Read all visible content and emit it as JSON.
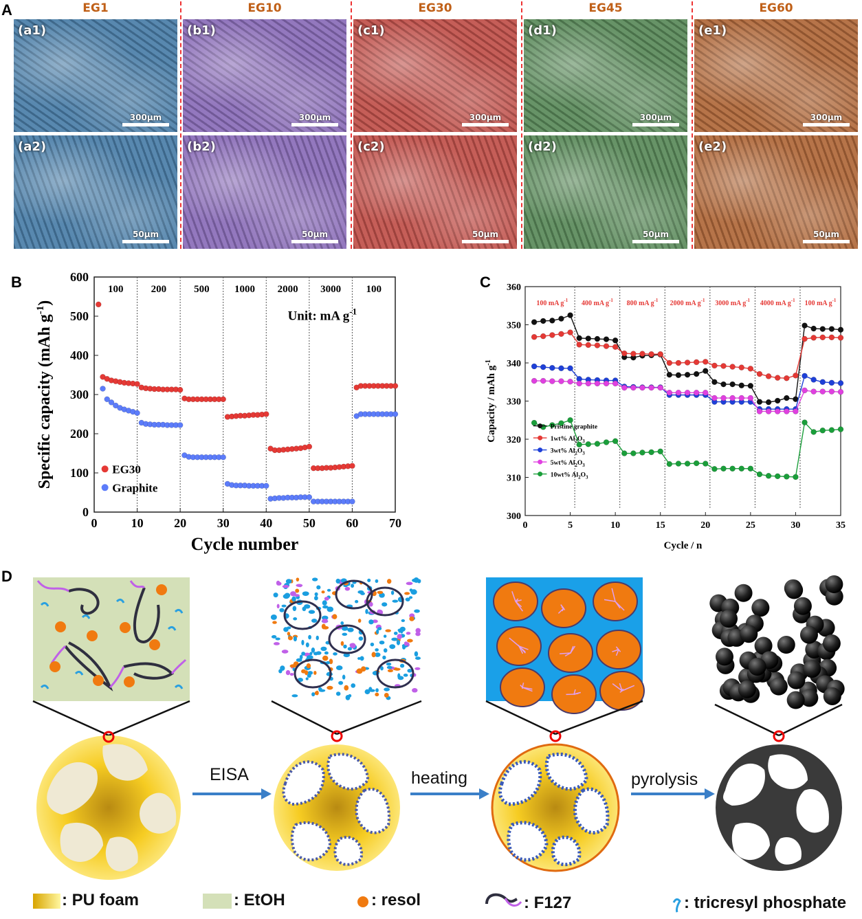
{
  "panel_A": {
    "letter": "A",
    "columns": [
      {
        "name": "EG1",
        "color": "#4a7ea8",
        "top_label": "(a1)",
        "bottom_label": "(a2)",
        "top_scale": "300μm",
        "bottom_scale": "50μm"
      },
      {
        "name": "EG10",
        "color": "#8a6cb8",
        "top_label": "(b1)",
        "bottom_label": "(b2)",
        "top_scale": "300μm",
        "bottom_scale": "50μm"
      },
      {
        "name": "EG30",
        "color": "#c0504a",
        "top_label": "(c1)",
        "bottom_label": "(c2)",
        "top_scale": "300μm",
        "bottom_scale": "50μm"
      },
      {
        "name": "EG45",
        "color": "#5a8a5a",
        "top_label": "(d1)",
        "bottom_label": "(d2)",
        "top_scale": "300μm",
        "bottom_scale": "50μm"
      },
      {
        "name": "EG60",
        "color": "#b0683a",
        "top_label": "(e1)",
        "bottom_label": "(e2)",
        "top_scale": "300μm",
        "bottom_scale": "50μm"
      }
    ]
  },
  "panel_B": {
    "letter": "B",
    "unit_note": "Unit: mA g",
    "unit_sup": "-1"
  },
  "panel_C": {
    "letter": "C"
  },
  "panel_D": {
    "letter": "D",
    "arrows": [
      "EISA",
      "heating",
      "pyrolysis"
    ],
    "legend": {
      "pu_foam": ":  PU foam",
      "etoh": ":  EtOH",
      "resol": ": resol",
      "f127": ": F127",
      "tcp": ": tricresyl phosphate"
    }
  },
  "chart_data": [
    {
      "type": "scatter",
      "xlabel": "Cycle number",
      "ylabel": "Specific capacity (mAh g",
      "ylabel_sup": "-1",
      "xlim": [
        0,
        70
      ],
      "ylim": [
        0,
        600
      ],
      "xticks": [
        0,
        10,
        20,
        30,
        40,
        50,
        60,
        70
      ],
      "yticks": [
        0,
        100,
        200,
        300,
        400,
        500,
        600
      ],
      "rate_labels": [
        "100",
        "200",
        "500",
        "1000",
        "2000",
        "3000",
        "100"
      ],
      "segment_boundaries": [
        10,
        20,
        30,
        40,
        50,
        60
      ],
      "legend_position": "bottom-left",
      "series": [
        {
          "name": "EG30",
          "color": "#e53935",
          "x": [
            1,
            2,
            3,
            4,
            5,
            6,
            7,
            8,
            9,
            10,
            11,
            12,
            13,
            14,
            15,
            16,
            17,
            18,
            19,
            20,
            21,
            22,
            23,
            24,
            25,
            26,
            27,
            28,
            29,
            30,
            31,
            32,
            33,
            34,
            35,
            36,
            37,
            38,
            39,
            40,
            41,
            42,
            43,
            44,
            45,
            46,
            47,
            48,
            49,
            50,
            51,
            52,
            53,
            54,
            55,
            56,
            57,
            58,
            59,
            60,
            61,
            62,
            63,
            64,
            65,
            66,
            67,
            68,
            69,
            70
          ],
          "y": [
            530,
            345,
            340,
            336,
            334,
            332,
            330,
            329,
            328,
            327,
            318,
            316,
            315,
            314,
            314,
            313,
            313,
            313,
            313,
            312,
            290,
            288,
            288,
            288,
            288,
            288,
            288,
            288,
            288,
            288,
            243,
            244,
            245,
            246,
            246,
            247,
            248,
            248,
            249,
            250,
            162,
            158,
            158,
            159,
            160,
            161,
            162,
            163,
            165,
            167,
            112,
            112,
            112,
            113,
            113,
            114,
            115,
            116,
            117,
            118,
            318,
            322,
            322,
            322,
            322,
            322,
            322,
            322,
            322,
            322
          ]
        },
        {
          "name": "Graphite",
          "color": "#5c7cfa",
          "x": [
            2,
            3,
            4,
            5,
            6,
            7,
            8,
            9,
            10,
            11,
            12,
            13,
            14,
            15,
            16,
            17,
            18,
            19,
            20,
            21,
            22,
            23,
            24,
            25,
            26,
            27,
            28,
            29,
            30,
            31,
            32,
            33,
            34,
            35,
            36,
            37,
            38,
            39,
            40,
            41,
            42,
            43,
            44,
            45,
            46,
            47,
            48,
            49,
            50,
            51,
            52,
            53,
            54,
            55,
            56,
            57,
            58,
            59,
            60,
            61,
            62,
            63,
            64,
            65,
            66,
            67,
            68,
            69,
            70
          ],
          "y": [
            315,
            288,
            280,
            272,
            266,
            262,
            259,
            256,
            253,
            228,
            225,
            224,
            223,
            223,
            223,
            222,
            222,
            222,
            222,
            145,
            141,
            140,
            140,
            140,
            140,
            140,
            140,
            140,
            140,
            72,
            69,
            68,
            68,
            68,
            67,
            67,
            67,
            67,
            67,
            34,
            35,
            36,
            36,
            37,
            37,
            37,
            38,
            38,
            38,
            27,
            27,
            27,
            27,
            27,
            27,
            27,
            27,
            27,
            27,
            245,
            250,
            250,
            250,
            250,
            250,
            250,
            250,
            250,
            250
          ]
        }
      ]
    },
    {
      "type": "line",
      "xlabel": "Cycle / n",
      "ylabel": "Capacity / mAh g",
      "ylabel_sup": "-1",
      "xlim": [
        0,
        35
      ],
      "ylim": [
        300,
        360
      ],
      "xticks": [
        0,
        5,
        10,
        15,
        20,
        25,
        30,
        35
      ],
      "yticks": [
        300,
        310,
        320,
        330,
        340,
        350,
        360
      ],
      "rate_labels": [
        "100 mA g",
        "400 mA g",
        "800 mA g",
        "2000 mA g",
        "3000 mA g",
        "4000 mA g",
        "100 mA g"
      ],
      "rate_label_sup": "-1",
      "segment_boundaries": [
        5.5,
        10.5,
        15.5,
        20.5,
        25.5,
        30.5
      ],
      "legend_position": "bottom-left",
      "series": [
        {
          "name": "Pristine graphite",
          "color": "#111111",
          "x": [
            1,
            2,
            3,
            4,
            5,
            6,
            7,
            8,
            9,
            10,
            11,
            12,
            13,
            14,
            15,
            16,
            17,
            18,
            19,
            20,
            21,
            22,
            23,
            24,
            25,
            26,
            27,
            28,
            29,
            30,
            31,
            32,
            33,
            34,
            35
          ],
          "y": [
            350.7,
            351.0,
            351.1,
            351.6,
            352.5,
            346.5,
            346.4,
            346.3,
            346.2,
            345.9,
            341.5,
            341.4,
            341.9,
            342.0,
            342.2,
            336.9,
            336.8,
            336.9,
            337.1,
            337.9,
            335.0,
            334.4,
            334.4,
            334.1,
            334.0,
            329.8,
            329.7,
            330.1,
            330.8,
            330.5,
            349.8,
            349.0,
            348.9,
            348.9,
            348.7
          ]
        },
        {
          "name": "1wt% Al",
          "name_sub": "2",
          "name_suffix": "O",
          "name_sub2": "3",
          "color": "#e53935",
          "x": [
            1,
            2,
            3,
            4,
            5,
            6,
            7,
            8,
            9,
            10,
            11,
            12,
            13,
            14,
            15,
            16,
            17,
            18,
            19,
            20,
            21,
            22,
            23,
            24,
            25,
            26,
            27,
            28,
            29,
            30,
            31,
            32,
            33,
            34,
            35
          ],
          "y": [
            346.8,
            347.0,
            347.3,
            347.6,
            348.0,
            344.8,
            344.7,
            344.6,
            344.4,
            344.2,
            342.5,
            342.4,
            342.4,
            342.3,
            342.3,
            340.0,
            340.0,
            340.1,
            340.2,
            340.3,
            339.3,
            339.2,
            339.0,
            338.8,
            338.5,
            337.1,
            336.5,
            336.1,
            336.0,
            336.7,
            346.3,
            346.6,
            346.7,
            346.7,
            346.6
          ]
        },
        {
          "name": "3wt% Al",
          "name_sub": "2",
          "name_suffix": "O",
          "name_sub2": "3",
          "color": "#1e40d8",
          "x": [
            1,
            2,
            3,
            4,
            5,
            6,
            7,
            8,
            9,
            10,
            11,
            12,
            13,
            14,
            15,
            16,
            17,
            18,
            19,
            20,
            21,
            22,
            23,
            24,
            25,
            26,
            27,
            28,
            29,
            30,
            31,
            32,
            33,
            34,
            35
          ],
          "y": [
            339.1,
            338.9,
            338.7,
            338.6,
            338.6,
            335.8,
            335.6,
            335.5,
            335.4,
            335.4,
            333.8,
            333.7,
            333.6,
            333.6,
            333.6,
            331.6,
            331.6,
            331.6,
            331.6,
            331.6,
            329.8,
            329.8,
            329.8,
            329.8,
            329.8,
            327.9,
            327.9,
            327.9,
            327.9,
            327.9,
            336.6,
            335.6,
            335.0,
            334.8,
            334.7
          ]
        },
        {
          "name": "5wt% Al",
          "name_sub": "2",
          "name_suffix": "O",
          "name_sub2": "3",
          "color": "#e040e0",
          "x": [
            1,
            2,
            3,
            4,
            5,
            6,
            7,
            8,
            9,
            10,
            11,
            12,
            13,
            14,
            15,
            16,
            17,
            18,
            19,
            20,
            21,
            22,
            23,
            24,
            25,
            26,
            27,
            28,
            29,
            30,
            31,
            32,
            33,
            34,
            35
          ],
          "y": [
            335.3,
            335.3,
            335.2,
            335.2,
            335.1,
            334.6,
            334.6,
            334.6,
            334.6,
            334.6,
            333.5,
            333.5,
            333.5,
            333.5,
            333.5,
            332.2,
            332.2,
            332.2,
            332.2,
            332.2,
            330.8,
            330.8,
            330.8,
            330.8,
            330.8,
            327.3,
            327.3,
            327.3,
            327.3,
            327.3,
            332.8,
            332.5,
            332.5,
            332.5,
            332.4
          ]
        },
        {
          "name": "10wt% Al",
          "name_sub": "2",
          "name_suffix": "O",
          "name_sub2": "3",
          "color": "#1a9e3a",
          "x": [
            1,
            2,
            3,
            4,
            5,
            6,
            7,
            8,
            9,
            10,
            11,
            12,
            13,
            14,
            15,
            16,
            17,
            18,
            19,
            20,
            21,
            22,
            23,
            24,
            25,
            26,
            27,
            28,
            29,
            30,
            31,
            32,
            33,
            34,
            35
          ],
          "y": [
            324.3,
            323.2,
            323.7,
            324.2,
            325.0,
            318.6,
            318.7,
            318.8,
            319.2,
            319.5,
            316.3,
            316.3,
            316.5,
            316.6,
            316.8,
            313.5,
            313.6,
            313.6,
            313.7,
            313.6,
            312.2,
            312.3,
            312.3,
            312.3,
            312.3,
            310.8,
            310.4,
            310.3,
            310.2,
            310.1,
            324.4,
            321.9,
            322.3,
            322.4,
            322.6
          ]
        }
      ]
    }
  ]
}
